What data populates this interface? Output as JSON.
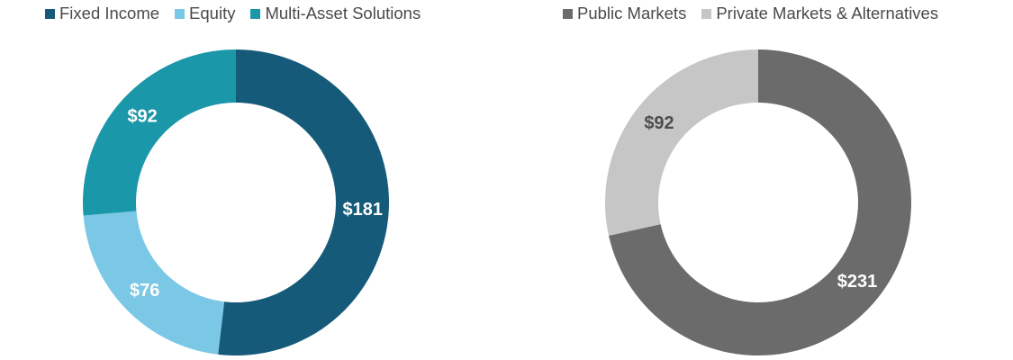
{
  "chart_data": [
    {
      "type": "pie",
      "variant": "donut",
      "legend_position": "top-left",
      "start_angle_deg": 0,
      "direction": "clockwise",
      "slices": [
        {
          "label": "Fixed Income",
          "value": 181,
          "value_label": "$181",
          "color": "#165a7a",
          "label_color": "#ffffff"
        },
        {
          "label": "Equity",
          "value": 76,
          "value_label": "$76",
          "color": "#7ac7e6",
          "label_color": "#ffffff"
        },
        {
          "label": "Multi-Asset Solutions",
          "value": 92,
          "value_label": "$92",
          "color": "#1a97a8",
          "label_color": "#ffffff"
        }
      ]
    },
    {
      "type": "pie",
      "variant": "donut",
      "legend_position": "top-left",
      "start_angle_deg": 0,
      "direction": "clockwise",
      "slices": [
        {
          "label": "Public Markets",
          "value": 231,
          "value_label": "$231",
          "color": "#6b6b6b",
          "label_color": "#ffffff"
        },
        {
          "label": "Private Markets & Alternatives",
          "value": 92,
          "value_label": "$92",
          "color": "#c6c6c6",
          "label_color": "#4d4d4d"
        }
      ]
    }
  ]
}
